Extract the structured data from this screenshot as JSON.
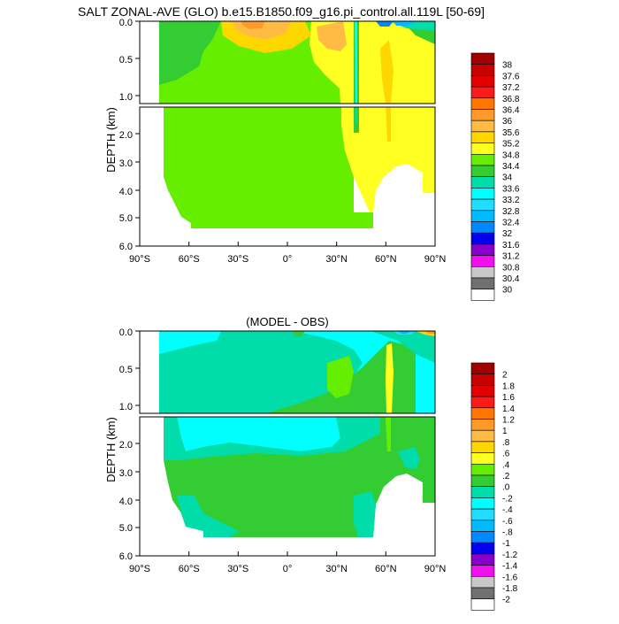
{
  "chart_data": [
    {
      "type": "heatmap",
      "title": "SALT ZONAL-AVE (GLO) b.e15.B1850.f09_g16.pi_control.all.119L [50-69]",
      "subtitle": "",
      "ylabel": "DEPTH (km)",
      "xlabel": "",
      "x_ticks": [
        "90°S",
        "60°S",
        "30°S",
        "0°",
        "30°N",
        "60°N",
        "90°N"
      ],
      "y_ticks_upper": [
        "0.0",
        "0.5",
        "1.0"
      ],
      "y_ticks_lower": [
        "2.0",
        "3.0",
        "4.0",
        "5.0",
        "6.0"
      ],
      "xlim": [
        -90,
        90
      ],
      "ylim_upper_km": [
        0,
        1.1
      ],
      "ylim_lower_km": [
        1.1,
        6.0
      ],
      "colorbar_labels": [
        "38",
        "37.6",
        "37.2",
        "36.8",
        "36.4",
        "36",
        "35.6",
        "35.2",
        "34.8",
        "34.4",
        "34",
        "33.6",
        "33.2",
        "32.8",
        "32.4",
        "32",
        "31.6",
        "31.2",
        "30.8",
        "30.4",
        "30"
      ],
      "colorbar_colors": [
        "#a00000",
        "#c80000",
        "#e40000",
        "#ff1a1a",
        "#ff7700",
        "#ff9a2a",
        "#ffbb44",
        "#ffd700",
        "#ffff22",
        "#66ee00",
        "#33cc33",
        "#00ddaa",
        "#00ffff",
        "#22ddff",
        "#00bbff",
        "#0088ff",
        "#0000ee",
        "#8800cc",
        "#ee11ee",
        "#c8c8c8",
        "#707070",
        "#ffffff"
      ]
    },
    {
      "type": "heatmap",
      "title": "(MODEL - OBS)",
      "ylabel": "DEPTH (km)",
      "xlabel": "",
      "x_ticks": [
        "90°S",
        "60°S",
        "30°S",
        "0°",
        "30°N",
        "60°N",
        "90°N"
      ],
      "y_ticks_upper": [
        "0.0",
        "0.5",
        "1.0"
      ],
      "y_ticks_lower": [
        "2.0",
        "3.0",
        "4.0",
        "5.0",
        "6.0"
      ],
      "xlim": [
        -90,
        90
      ],
      "ylim_upper_km": [
        0,
        1.1
      ],
      "ylim_lower_km": [
        1.1,
        6.0
      ],
      "colorbar_labels": [
        "2",
        "1.8",
        "1.6",
        "1.4",
        "1.2",
        "1",
        ".8",
        ".6",
        ".4",
        ".2",
        ".0",
        "-.2",
        "-.4",
        "-.6",
        "-.8",
        "-1",
        "-1.2",
        "-1.4",
        "-1.6",
        "-1.8",
        "-2"
      ],
      "colorbar_colors": [
        "#a00000",
        "#c80000",
        "#e40000",
        "#ff1a1a",
        "#ff7700",
        "#ff9a2a",
        "#ffbb44",
        "#ffd700",
        "#ffff22",
        "#66ee00",
        "#33cc33",
        "#00ddaa",
        "#00ffff",
        "#22ddff",
        "#00bbff",
        "#0088ff",
        "#0000ee",
        "#8800cc",
        "#ee11ee",
        "#c8c8c8",
        "#707070",
        "#ffffff"
      ]
    }
  ]
}
